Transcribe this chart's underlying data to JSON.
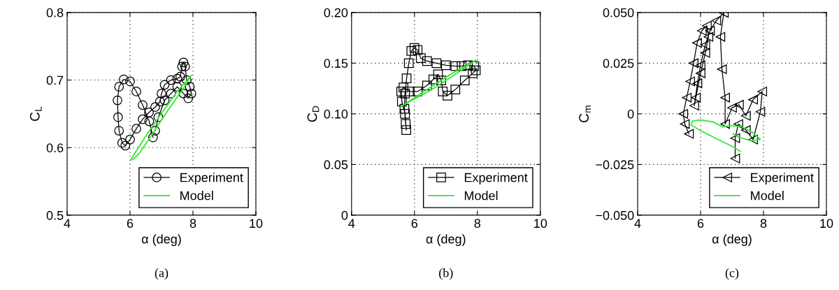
{
  "chart_data": [
    {
      "type": "line",
      "xlabel": "α (deg)",
      "ylabel": "C$_{L}$",
      "annotations": [
        "(a)"
      ],
      "xlim": [
        4,
        10
      ],
      "ylim": [
        0.5,
        0.8
      ],
      "xticks": [
        4,
        6,
        8,
        10
      ],
      "yticks": [
        0.5,
        0.6,
        0.7,
        0.8
      ],
      "grid": true,
      "legend": "bottom right",
      "series": [
        {
          "name": "Experiment",
          "color": "#000000",
          "marker": "circle",
          "x": [
            6.73,
            6.61,
            6.4,
            6.2,
            6.0,
            5.8,
            5.65,
            5.6,
            5.62,
            5.65,
            5.75,
            5.85,
            6.0,
            6.2,
            6.4,
            6.6,
            6.8,
            6.95,
            7.0,
            7.1,
            7.3,
            7.5,
            7.6,
            7.65,
            7.7,
            7.75,
            7.8,
            7.9,
            7.95,
            7.85,
            7.7,
            7.5,
            7.3,
            7.1,
            6.9,
            6.8
          ],
          "values": [
            0.615,
            0.639,
            0.663,
            0.683,
            0.698,
            0.701,
            0.69,
            0.67,
            0.645,
            0.625,
            0.607,
            0.603,
            0.612,
            0.628,
            0.642,
            0.652,
            0.66,
            0.668,
            0.68,
            0.693,
            0.7,
            0.702,
            0.705,
            0.72,
            0.726,
            0.72,
            0.7,
            0.69,
            0.68,
            0.673,
            0.68,
            0.69,
            0.68,
            0.67,
            0.645,
            0.625
          ]
        },
        {
          "name": "Model",
          "color": "#33e633",
          "marker": "none",
          "x": [
            6.02,
            6.5,
            7.0,
            7.5,
            7.95,
            7.7,
            7.2,
            6.75,
            6.3,
            6.08
          ],
          "values": [
            0.582,
            0.617,
            0.651,
            0.683,
            0.707,
            0.688,
            0.655,
            0.623,
            0.592,
            0.582
          ]
        }
      ]
    },
    {
      "type": "line",
      "xlabel": "α (deg)",
      "ylabel": "C$_{D}$",
      "annotations": [
        "(b)"
      ],
      "xlim": [
        4,
        10
      ],
      "ylim": [
        0,
        0.2
      ],
      "xticks": [
        4,
        6,
        8,
        10
      ],
      "yticks": [
        0,
        {
          "value": 0.05,
          "label": "0.05"
        },
        {
          "value": 0.1,
          "label": "0.10"
        },
        {
          "value": 0.15,
          "label": "0.15"
        },
        {
          "value": 0.2,
          "label": "0.20"
        }
      ],
      "grid": true,
      "legend": "bottom right",
      "series": [
        {
          "name": "Experiment",
          "color": "#000000",
          "marker": "square",
          "x": [
            5.74,
            5.7,
            5.6,
            5.58,
            5.65,
            5.85,
            6.1,
            6.4,
            6.6,
            6.75,
            6.85,
            6.9,
            7.05,
            7.3,
            7.6,
            7.85,
            7.95,
            7.9,
            7.7,
            7.5,
            7.3,
            7.0,
            6.7,
            6.4,
            6.2,
            6.1,
            6.0,
            5.9,
            5.82,
            5.75,
            5.7,
            5.68,
            5.72
          ],
          "values": [
            0.084,
            0.1,
            0.112,
            0.122,
            0.126,
            0.122,
            0.122,
            0.128,
            0.134,
            0.139,
            0.133,
            0.122,
            0.118,
            0.124,
            0.133,
            0.14,
            0.143,
            0.147,
            0.148,
            0.147,
            0.147,
            0.148,
            0.15,
            0.152,
            0.155,
            0.163,
            0.165,
            0.162,
            0.15,
            0.135,
            0.12,
            0.105,
            0.09
          ]
        },
        {
          "name": "Model",
          "color": "#33e633",
          "marker": "none",
          "x": [
            5.56,
            6.5,
            7.2,
            7.96,
            7.2,
            6.5,
            5.6
          ],
          "values": [
            0.107,
            0.126,
            0.14,
            0.153,
            0.137,
            0.123,
            0.108
          ]
        }
      ]
    },
    {
      "type": "line",
      "xlabel": "α (deg)",
      "ylabel": "C$_{m}$",
      "annotations": [
        "(c)"
      ],
      "xlim": [
        4,
        10
      ],
      "ylim": [
        -0.05,
        0.05
      ],
      "xticks": [
        4,
        6,
        8,
        10
      ],
      "yticks": [
        {
          "value": -0.05,
          "label": "−0.050"
        },
        {
          "value": -0.025,
          "label": "−0.025"
        },
        0,
        {
          "value": 0.025,
          "label": "0.025"
        },
        {
          "value": 0.05,
          "label": "0.050"
        }
      ],
      "grid": true,
      "legend": "bottom right",
      "series": [
        {
          "name": "Experiment",
          "color": "#000000",
          "marker": "triangle",
          "x": [
            5.63,
            5.5,
            5.45,
            5.56,
            5.67,
            5.78,
            5.89,
            6.04,
            6.2,
            6.25,
            6.15,
            6.0,
            5.85,
            5.8,
            5.9,
            6.0,
            6.15,
            6.3,
            6.5,
            6.74,
            6.63,
            6.68,
            6.78,
            6.78,
            7.0,
            7.22,
            7.44,
            7.67,
            7.96,
            7.9,
            7.67,
            7.44,
            7.2,
            7.1,
            7.1
          ],
          "values": [
            -0.0099,
            -0.005,
            0.0,
            0.008,
            0.016,
            0.025,
            0.035,
            0.041,
            0.0435,
            0.038,
            0.03,
            0.02,
            0.008,
            0.004,
            0.015,
            0.024,
            0.034,
            0.041,
            0.046,
            0.0498,
            0.038,
            0.022,
            0.008,
            -0.005,
            0.003,
            0.0045,
            -0.001,
            0.007,
            0.011,
            0.001,
            -0.0127,
            -0.008,
            -0.005,
            -0.012,
            -0.022
          ]
        },
        {
          "name": "Model",
          "color": "#33e633",
          "marker": "none",
          "x": [
            7.26,
            7.0,
            6.56,
            6.0,
            5.7,
            5.75,
            6.0,
            6.4,
            6.7,
            6.95,
            7.3,
            7.67,
            7.9,
            7.6,
            7.2,
            7.04
          ],
          "values": [
            -0.0185,
            -0.016,
            -0.0127,
            -0.0083,
            -0.0055,
            -0.0035,
            -0.003,
            -0.004,
            -0.0065,
            -0.0058,
            -0.0064,
            -0.0093,
            -0.0127,
            -0.0133,
            -0.0115,
            -0.0099
          ]
        }
      ]
    }
  ]
}
